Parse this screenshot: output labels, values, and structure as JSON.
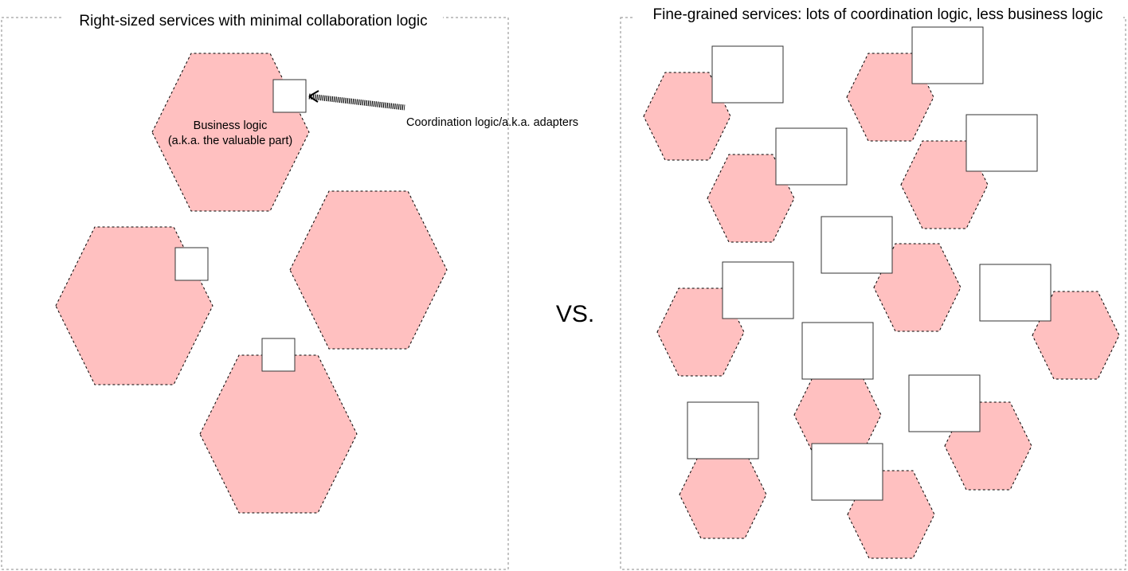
{
  "left_panel": {
    "title": "Right-sized services with minimal collaboration logic",
    "business_logic_label_line1": "Business logic",
    "business_logic_label_line2": "(a.k.a. the valuable part)",
    "callout_label": "Coordination logic/a.k.a. adapters",
    "service_count": 4,
    "adapter_count": 3
  },
  "separator_label": "VS.",
  "right_panel": {
    "title": "Fine-grained services: lots of coordination logic, less business logic",
    "service_count": 11,
    "adapter_count": 11
  },
  "colors": {
    "service_fill": "#ffc0c0",
    "service_stroke": "#000000",
    "adapter_fill": "#ffffff",
    "frame_stroke": "#888888"
  }
}
